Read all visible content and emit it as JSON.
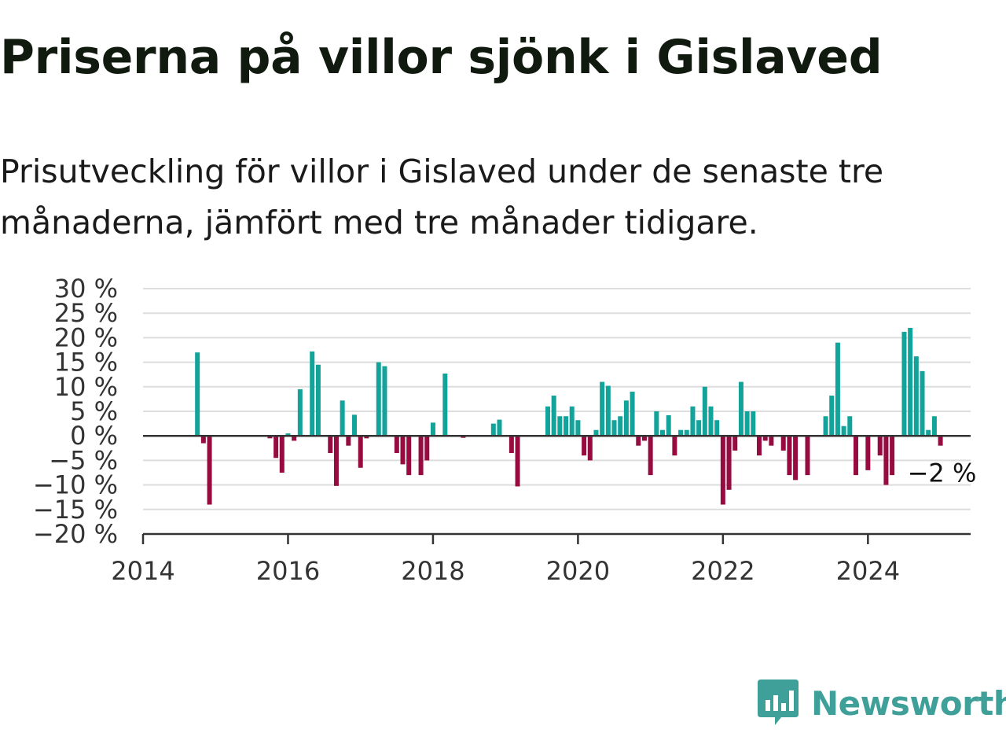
{
  "title": "Priserna på villor sjönk i Gislaved",
  "subtitle": "Prisutveckling för villor i Gislaved under de senaste tre månaderna, jämfört med tre månader tidigare.",
  "brand": {
    "name": "Newsworthy",
    "icon": "newsworthy-logo-icon",
    "color": "#3f9f99"
  },
  "chart_data": {
    "type": "bar",
    "title": "",
    "xlabel": "",
    "ylabel": "",
    "x_unit": "year-month",
    "x_range": [
      "2014-01",
      "2025-06"
    ],
    "ylim": [
      -20,
      30
    ],
    "yticks": [
      30,
      25,
      20,
      15,
      10,
      5,
      0,
      -5,
      -10,
      -15,
      -20
    ],
    "ytick_labels": [
      "30 %",
      "25 %",
      "20 %",
      "15 %",
      "10 %",
      "5 %",
      "0 %",
      "−5 %",
      "−10 %",
      "−15 %",
      "−20 %"
    ],
    "xticks": [
      2014,
      2016,
      2018,
      2020,
      2022,
      2024
    ],
    "xtick_labels": [
      "2014",
      "2016",
      "2018",
      "2020",
      "2022",
      "2024"
    ],
    "grid": true,
    "legend": "none",
    "colors": {
      "positive": "#12a39b",
      "negative": "#970c40",
      "grid": "#dddddd",
      "axis": "#333333"
    },
    "last_label": "−2 %",
    "points": [
      {
        "x": "2014-10",
        "y": 17
      },
      {
        "x": "2014-11",
        "y": -1.5
      },
      {
        "x": "2014-12",
        "y": -14
      },
      {
        "x": "2015-10",
        "y": -0.5
      },
      {
        "x": "2015-11",
        "y": -4.5
      },
      {
        "x": "2015-12",
        "y": -7.5
      },
      {
        "x": "2016-01",
        "y": 0.5
      },
      {
        "x": "2016-02",
        "y": -1
      },
      {
        "x": "2016-03",
        "y": 9.5
      },
      {
        "x": "2016-05",
        "y": 17.2
      },
      {
        "x": "2016-06",
        "y": 14.5
      },
      {
        "x": "2016-08",
        "y": -3.5
      },
      {
        "x": "2016-09",
        "y": -10.2
      },
      {
        "x": "2016-10",
        "y": 7.2
      },
      {
        "x": "2016-11",
        "y": -2
      },
      {
        "x": "2016-12",
        "y": 4.3
      },
      {
        "x": "2017-01",
        "y": -6.5
      },
      {
        "x": "2017-02",
        "y": -0.5
      },
      {
        "x": "2017-04",
        "y": 15
      },
      {
        "x": "2017-05",
        "y": 14.2
      },
      {
        "x": "2017-07",
        "y": -3.5
      },
      {
        "x": "2017-08",
        "y": -5.8
      },
      {
        "x": "2017-09",
        "y": -8
      },
      {
        "x": "2017-11",
        "y": -8
      },
      {
        "x": "2017-12",
        "y": -5
      },
      {
        "x": "2018-01",
        "y": 2.7
      },
      {
        "x": "2018-03",
        "y": 12.7
      },
      {
        "x": "2018-06",
        "y": -0.4
      },
      {
        "x": "2018-11",
        "y": 2.5
      },
      {
        "x": "2018-12",
        "y": 3.3
      },
      {
        "x": "2019-02",
        "y": -3.5
      },
      {
        "x": "2019-03",
        "y": -10.3
      },
      {
        "x": "2019-08",
        "y": 6
      },
      {
        "x": "2019-09",
        "y": 8.2
      },
      {
        "x": "2019-10",
        "y": 4
      },
      {
        "x": "2019-11",
        "y": 4
      },
      {
        "x": "2019-12",
        "y": 6
      },
      {
        "x": "2020-01",
        "y": 3.2
      },
      {
        "x": "2020-02",
        "y": -4
      },
      {
        "x": "2020-03",
        "y": -5
      },
      {
        "x": "2020-04",
        "y": 1.2
      },
      {
        "x": "2020-05",
        "y": 11
      },
      {
        "x": "2020-06",
        "y": 10.2
      },
      {
        "x": "2020-07",
        "y": 3.2
      },
      {
        "x": "2020-08",
        "y": 4
      },
      {
        "x": "2020-09",
        "y": 7.2
      },
      {
        "x": "2020-10",
        "y": 9
      },
      {
        "x": "2020-11",
        "y": -2
      },
      {
        "x": "2020-12",
        "y": -1
      },
      {
        "x": "2021-01",
        "y": -8
      },
      {
        "x": "2021-02",
        "y": 5
      },
      {
        "x": "2021-03",
        "y": 1.2
      },
      {
        "x": "2021-04",
        "y": 4.2
      },
      {
        "x": "2021-05",
        "y": -4
      },
      {
        "x": "2021-06",
        "y": 1.2
      },
      {
        "x": "2021-07",
        "y": 1.2
      },
      {
        "x": "2021-08",
        "y": 6
      },
      {
        "x": "2021-09",
        "y": 3.2
      },
      {
        "x": "2021-10",
        "y": 10
      },
      {
        "x": "2021-11",
        "y": 6
      },
      {
        "x": "2021-12",
        "y": 3.2
      },
      {
        "x": "2022-01",
        "y": -14
      },
      {
        "x": "2022-02",
        "y": -11
      },
      {
        "x": "2022-03",
        "y": -3
      },
      {
        "x": "2022-04",
        "y": 11
      },
      {
        "x": "2022-05",
        "y": 5
      },
      {
        "x": "2022-06",
        "y": 5
      },
      {
        "x": "2022-07",
        "y": -4
      },
      {
        "x": "2022-08",
        "y": -1
      },
      {
        "x": "2022-09",
        "y": -2
      },
      {
        "x": "2022-11",
        "y": -3
      },
      {
        "x": "2022-12",
        "y": -8
      },
      {
        "x": "2023-01",
        "y": -9
      },
      {
        "x": "2023-03",
        "y": -8
      },
      {
        "x": "2023-06",
        "y": 4
      },
      {
        "x": "2023-07",
        "y": 8.2
      },
      {
        "x": "2023-08",
        "y": 19
      },
      {
        "x": "2023-09",
        "y": 2
      },
      {
        "x": "2023-10",
        "y": 4
      },
      {
        "x": "2023-11",
        "y": -8
      },
      {
        "x": "2024-01",
        "y": -7
      },
      {
        "x": "2024-03",
        "y": -4
      },
      {
        "x": "2024-04",
        "y": -10
      },
      {
        "x": "2024-05",
        "y": -8
      },
      {
        "x": "2024-07",
        "y": 21.2
      },
      {
        "x": "2024-08",
        "y": 22
      },
      {
        "x": "2024-09",
        "y": 16.2
      },
      {
        "x": "2024-10",
        "y": 13.2
      },
      {
        "x": "2024-11",
        "y": 1.2
      },
      {
        "x": "2024-12",
        "y": 4
      },
      {
        "x": "2025-01",
        "y": -2
      }
    ]
  }
}
